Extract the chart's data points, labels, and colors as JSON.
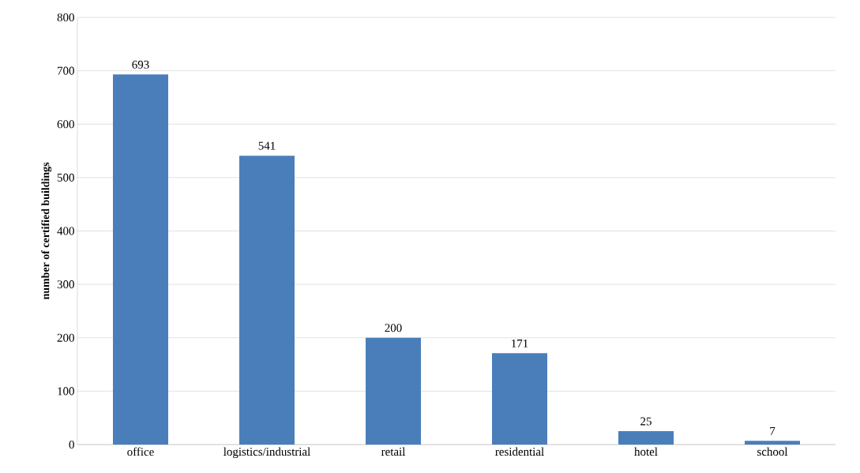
{
  "chart_data": {
    "type": "bar",
    "ylabel": "number of certified buildings",
    "categories": [
      "office",
      "logistics/industrial",
      "retail",
      "residential",
      "hotel",
      "school"
    ],
    "values": [
      693,
      541,
      200,
      171,
      25,
      7
    ],
    "color": "#4a7ebb",
    "ylim": [
      0,
      800
    ],
    "yticks": [
      0,
      100,
      200,
      300,
      400,
      500,
      600,
      700,
      800
    ],
    "grid": "y",
    "data_labels": true
  }
}
